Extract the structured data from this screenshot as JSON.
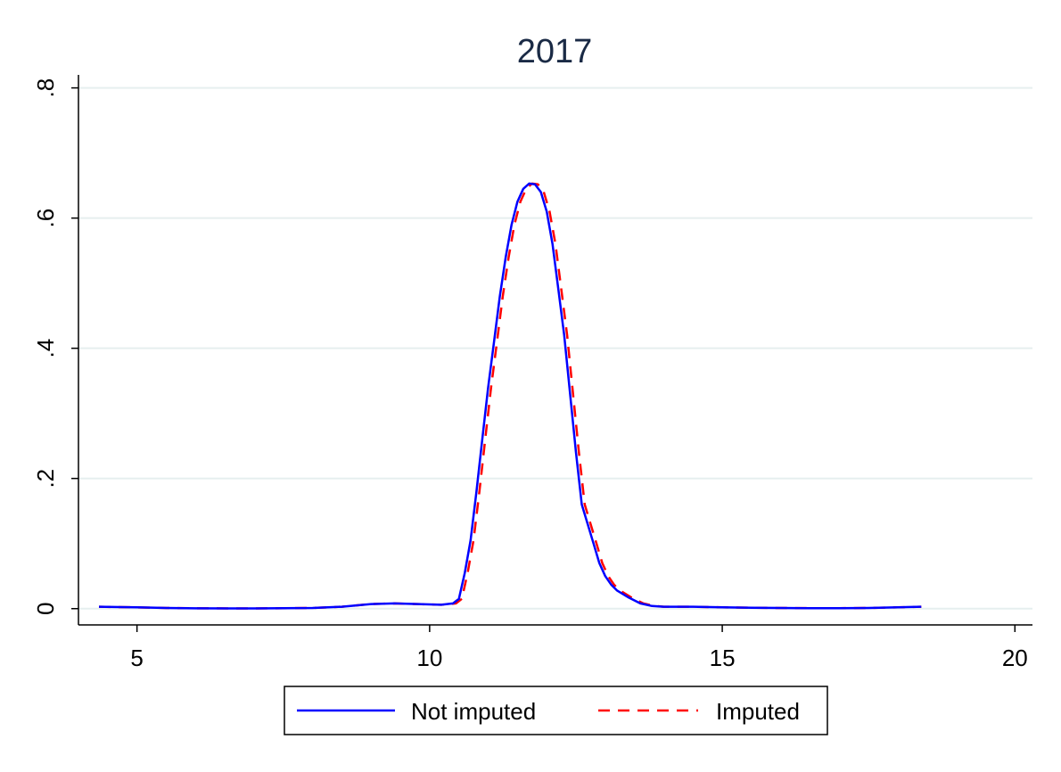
{
  "chart_data": {
    "type": "line",
    "title": "2017",
    "xlabel": "",
    "ylabel": "",
    "xlim": [
      4.0,
      20.3
    ],
    "ylim": [
      -0.025,
      0.82
    ],
    "xticks": [
      5,
      10,
      15,
      20
    ],
    "xtick_labels": [
      "5",
      "10",
      "15",
      "20"
    ],
    "yticks": [
      0,
      0.2,
      0.4,
      0.6,
      0.8
    ],
    "ytick_labels": [
      "0",
      ".2",
      ".4",
      ".6",
      ".8"
    ],
    "grid": true,
    "legend_position": "bottom",
    "series": [
      {
        "name": "Not imputed",
        "color": "#0000ff",
        "style": "solid",
        "x": [
          4.35,
          5.0,
          5.5,
          6.0,
          7.0,
          8.0,
          8.5,
          9.0,
          9.4,
          9.8,
          10.2,
          10.4,
          10.5,
          10.6,
          10.7,
          10.8,
          10.9,
          11.0,
          11.1,
          11.2,
          11.3,
          11.4,
          11.5,
          11.6,
          11.7,
          11.8,
          11.9,
          12.0,
          12.1,
          12.2,
          12.3,
          12.4,
          12.5,
          12.6,
          12.7,
          12.8,
          12.9,
          13.0,
          13.1,
          13.2,
          13.4,
          13.6,
          13.8,
          14.0,
          14.5,
          15.0,
          15.5,
          16.0,
          16.5,
          17.0,
          17.5,
          18.0,
          18.4
        ],
        "y": [
          0.003,
          0.002,
          0.001,
          0.0005,
          0.0003,
          0.001,
          0.003,
          0.007,
          0.008,
          0.007,
          0.006,
          0.008,
          0.015,
          0.055,
          0.105,
          0.18,
          0.26,
          0.34,
          0.41,
          0.48,
          0.54,
          0.59,
          0.625,
          0.645,
          0.653,
          0.652,
          0.64,
          0.61,
          0.56,
          0.49,
          0.42,
          0.33,
          0.24,
          0.16,
          0.13,
          0.1,
          0.07,
          0.05,
          0.037,
          0.028,
          0.017,
          0.008,
          0.004,
          0.003,
          0.003,
          0.002,
          0.0015,
          0.001,
          0.0008,
          0.0008,
          0.001,
          0.002,
          0.003
        ]
      },
      {
        "name": "Imputed",
        "color": "#ff0000",
        "style": "dashed",
        "x": [
          4.35,
          5.0,
          5.5,
          6.0,
          7.0,
          8.0,
          8.5,
          9.0,
          9.4,
          9.8,
          10.2,
          10.45,
          10.55,
          10.65,
          10.75,
          10.85,
          10.95,
          11.05,
          11.15,
          11.25,
          11.35,
          11.45,
          11.55,
          11.65,
          11.75,
          11.85,
          11.95,
          12.05,
          12.15,
          12.25,
          12.35,
          12.45,
          12.55,
          12.65,
          12.75,
          12.85,
          12.95,
          13.05,
          13.15,
          13.25,
          13.45,
          13.65,
          13.85,
          14.0,
          14.5,
          15.0,
          15.5,
          16.0,
          16.5,
          17.0,
          17.5,
          18.0,
          18.4
        ],
        "y": [
          0.003,
          0.002,
          0.001,
          0.0005,
          0.0003,
          0.001,
          0.003,
          0.007,
          0.008,
          0.007,
          0.006,
          0.008,
          0.015,
          0.055,
          0.105,
          0.18,
          0.26,
          0.34,
          0.41,
          0.48,
          0.54,
          0.59,
          0.625,
          0.645,
          0.653,
          0.652,
          0.64,
          0.61,
          0.56,
          0.49,
          0.42,
          0.33,
          0.24,
          0.16,
          0.13,
          0.1,
          0.07,
          0.05,
          0.037,
          0.028,
          0.017,
          0.008,
          0.004,
          0.003,
          0.003,
          0.002,
          0.0015,
          0.001,
          0.0008,
          0.0008,
          0.001,
          0.002,
          0.003
        ]
      }
    ]
  }
}
